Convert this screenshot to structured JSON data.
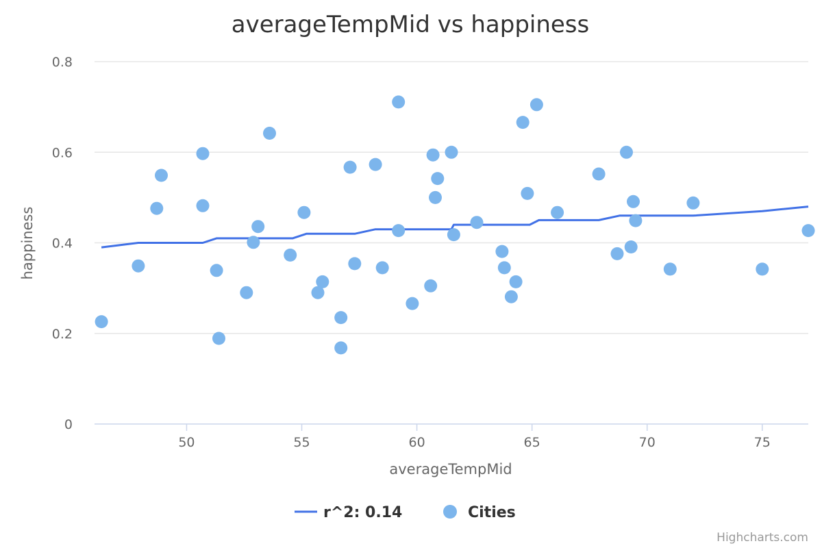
{
  "chart_data": {
    "type": "scatter",
    "title": "averageTempMid vs happiness",
    "xlabel": "averageTempMid",
    "ylabel": "happiness",
    "xlim": [
      46,
      77
    ],
    "ylim": [
      0,
      0.8
    ],
    "xticks": [
      50,
      55,
      60,
      65,
      70,
      75
    ],
    "yticks": [
      0,
      0.2,
      0.4,
      0.6,
      0.8
    ],
    "grid": true,
    "legend_position": "bottom",
    "series": [
      {
        "name": "r^2: 0.14",
        "type": "line",
        "color": "#4171e6",
        "x": [
          46.3,
          47.9,
          50.7,
          51.3,
          54.6,
          55.2,
          57.3,
          58.2,
          61.5,
          61.6,
          64.9,
          65.3,
          67.9,
          68.8,
          72.0,
          75.0,
          77.0
        ],
        "y": [
          0.39,
          0.4,
          0.4,
          0.41,
          0.41,
          0.42,
          0.42,
          0.43,
          0.43,
          0.44,
          0.44,
          0.45,
          0.45,
          0.46,
          0.46,
          0.47,
          0.48
        ]
      },
      {
        "name": "Cities",
        "type": "scatter",
        "color": "#7cb5ec",
        "x": [
          46.3,
          47.9,
          48.7,
          48.9,
          50.7,
          50.7,
          51.3,
          51.4,
          52.6,
          52.9,
          53.1,
          53.6,
          54.5,
          55.1,
          55.7,
          55.9,
          56.7,
          56.7,
          57.1,
          57.3,
          58.2,
          58.5,
          59.2,
          59.2,
          59.8,
          60.6,
          60.7,
          60.8,
          60.9,
          61.5,
          61.6,
          62.6,
          63.7,
          63.8,
          64.1,
          64.3,
          64.6,
          64.8,
          65.2,
          66.1,
          67.9,
          68.7,
          69.1,
          69.3,
          69.4,
          69.5,
          71.0,
          72.0,
          75.0,
          77.0
        ],
        "y": [
          0.226,
          0.349,
          0.476,
          0.549,
          0.597,
          0.482,
          0.339,
          0.189,
          0.29,
          0.401,
          0.436,
          0.642,
          0.373,
          0.467,
          0.29,
          0.314,
          0.235,
          0.168,
          0.567,
          0.354,
          0.573,
          0.345,
          0.711,
          0.427,
          0.266,
          0.305,
          0.594,
          0.5,
          0.542,
          0.6,
          0.418,
          0.445,
          0.381,
          0.345,
          0.281,
          0.314,
          0.666,
          0.509,
          0.705,
          0.467,
          0.552,
          0.376,
          0.6,
          0.391,
          0.491,
          0.449,
          0.342,
          0.488,
          0.342,
          0.427
        ]
      }
    ]
  },
  "legend": {
    "items": [
      {
        "label": "r^2: 0.14",
        "color": "#4171e6",
        "symbol": "line"
      },
      {
        "label": "Cities",
        "color": "#7cb5ec",
        "symbol": "circle"
      }
    ]
  },
  "credits": "Highcharts.com"
}
